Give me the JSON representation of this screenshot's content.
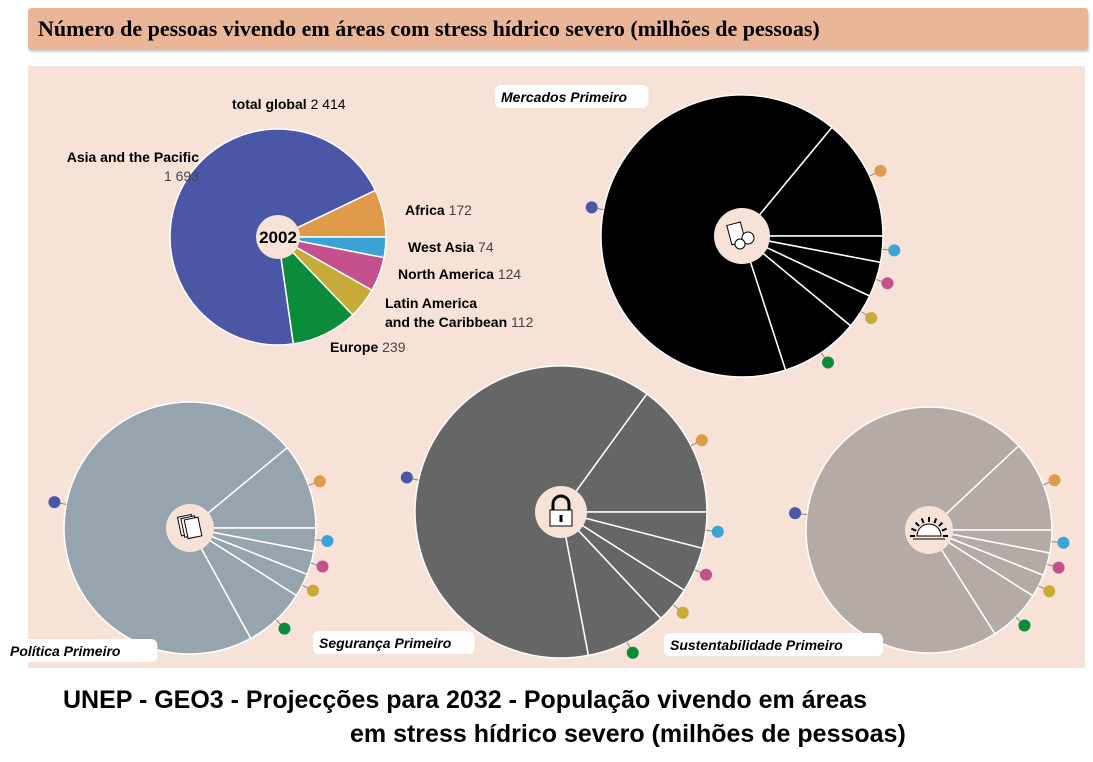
{
  "header": {
    "title": "Número de pessoas vivendo em áreas com stress hídrico severo (milhões de pessoas)"
  },
  "footer": {
    "line1": "UNEP - GEO3 - Projecções para 2032 - População vivendo em áreas",
    "line2": "em stress hídrico severo (milhões de pessoas)"
  },
  "chart_data": [
    {
      "type": "pie",
      "title": "2002",
      "total_label": "total global",
      "total": "2 414",
      "categories": [
        "Africa",
        "West Asia",
        "North America",
        "Latin America and the Caribbean",
        "Europe",
        "Asia and the Pacific"
      ],
      "values": [
        172,
        74,
        124,
        112,
        239,
        1693
      ],
      "labels": [
        "Africa",
        "West Asia",
        "North America",
        "Latin America",
        "Europe",
        "Asia and the Pacific"
      ],
      "label_line2": "and the Caribbean",
      "value_labels": [
        "172",
        "74",
        "124",
        "112",
        "239",
        "1 693"
      ],
      "colors": [
        "#e09b4a",
        "#3ba3d6",
        "#c4508e",
        "#c8aa3a",
        "#0b8c3a",
        "#4a56a6"
      ]
    },
    {
      "type": "pie",
      "title": "Mercados Primeiro",
      "icon": "market-icon",
      "fill": "#000000",
      "values_percent": [
        14,
        3,
        4,
        4,
        9,
        66
      ]
    },
    {
      "type": "pie",
      "title": "Política Primeiro",
      "icon": "policy-documents-icon",
      "fill": "#96a4ad",
      "values_percent": [
        11,
        3,
        3,
        3,
        8,
        72
      ]
    },
    {
      "type": "pie",
      "title": "Segurança Primeiro",
      "icon": "padlock-icon",
      "fill": "#666666",
      "values_percent": [
        15,
        4,
        5,
        4,
        9,
        63
      ]
    },
    {
      "type": "pie",
      "title": "Sustentabilidade Primeiro",
      "icon": "sunrise-icon",
      "fill": "#b5aaa6",
      "values_percent": [
        12,
        3,
        3,
        3,
        7,
        72
      ]
    }
  ]
}
